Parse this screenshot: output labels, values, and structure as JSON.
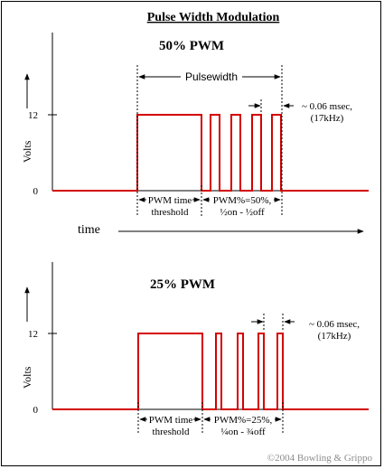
{
  "title": "Pulse Width Modulation",
  "copyright": "©2004 Bowling & Grippo",
  "axis_x_label": "time",
  "colors": {
    "signal": "#d40000",
    "ink": "#000000",
    "copyright": "#8c8c8c"
  },
  "panels": [
    {
      "heading": "50% PWM",
      "y_label": "Volts",
      "y_ticks": [
        "12",
        "0"
      ],
      "pulsewidth_label": "Pulsewidth",
      "period_line1": "~ 0.06 msec,",
      "period_line2": "(17kHz)",
      "threshold_line1": "PWM time",
      "threshold_line2": "threshold",
      "duty_line1": "PWM%=50%,",
      "duty_line2": "½on - ½off",
      "duty_percent": 50
    },
    {
      "heading": "25% PWM",
      "y_label": "Volts",
      "y_ticks": [
        "12",
        "0"
      ],
      "period_line1": "~ 0.06 msec,",
      "period_line2": "(17kHz)",
      "threshold_line1": "PWM time",
      "threshold_line2": "threshold",
      "duty_line1": "PWM%=25%,",
      "duty_line2": "¼on - ¾off",
      "duty_percent": 25
    }
  ]
}
